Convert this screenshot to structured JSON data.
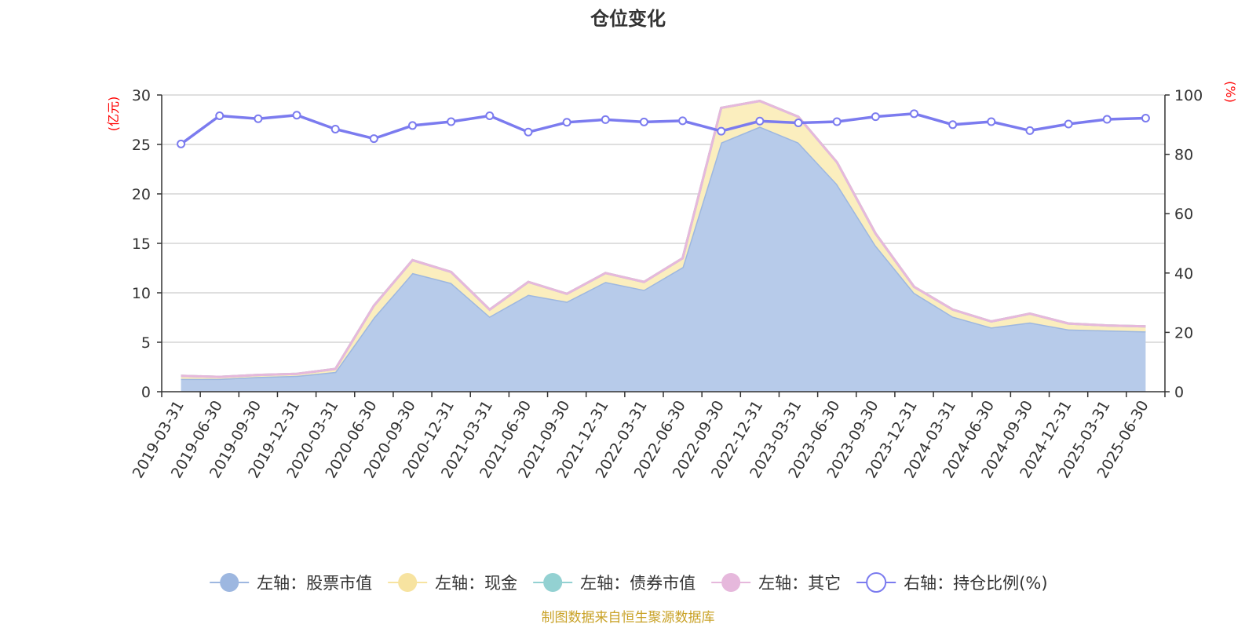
{
  "chart_data": {
    "type": "area",
    "title": "仓位变化",
    "y_left_unit": "(亿元)",
    "y_right_unit": "(%)",
    "ylim_left": [
      0,
      30
    ],
    "yticks_left": [
      0,
      5,
      10,
      15,
      20,
      25,
      30
    ],
    "ylim_right": [
      0,
      100
    ],
    "yticks_right": [
      0,
      20,
      40,
      60,
      80,
      100
    ],
    "grid": true,
    "legend_position": "bottom",
    "x": [
      "2019-03-31",
      "2019-06-30",
      "2019-09-30",
      "2019-12-31",
      "2020-03-31",
      "2020-06-30",
      "2020-09-30",
      "2020-12-31",
      "2021-03-31",
      "2021-06-30",
      "2021-09-30",
      "2021-12-31",
      "2022-03-31",
      "2022-06-30",
      "2022-09-30",
      "2022-12-31",
      "2023-03-31",
      "2023-06-30",
      "2023-09-30",
      "2023-12-31",
      "2024-03-31",
      "2024-06-30",
      "2024-09-30",
      "2024-12-31",
      "2025-03-31",
      "2025-06-30"
    ],
    "series": [
      {
        "name": "左轴：股票市值",
        "axis": "left",
        "stack": true,
        "color": "#9db7e0",
        "fill": "#b7cbea",
        "values": [
          1.3,
          1.3,
          1.5,
          1.6,
          2.0,
          7.5,
          12.0,
          11.0,
          7.6,
          9.8,
          9.1,
          11.1,
          10.3,
          12.6,
          25.2,
          26.8,
          25.2,
          21.0,
          14.8,
          10.0,
          7.6,
          6.5,
          7.0,
          6.3,
          6.2,
          6.1
        ]
      },
      {
        "name": "左轴：现金",
        "axis": "left",
        "stack": true,
        "color": "#f7e3a0",
        "fill": "#fbeebe",
        "values": [
          0.3,
          0.2,
          0.2,
          0.2,
          0.3,
          1.2,
          1.3,
          1.1,
          0.7,
          1.3,
          0.8,
          0.9,
          0.8,
          0.9,
          3.5,
          2.6,
          2.6,
          2.2,
          1.2,
          0.6,
          0.7,
          0.6,
          0.9,
          0.6,
          0.5,
          0.5
        ]
      },
      {
        "name": "左轴：债券市值",
        "axis": "left",
        "stack": true,
        "color": "#93d1d2",
        "fill": "#93d1d2",
        "values": [
          0,
          0,
          0,
          0,
          0,
          0,
          0,
          0,
          0,
          0,
          0,
          0,
          0,
          0,
          0,
          0,
          0,
          0,
          0,
          0,
          0,
          0,
          0,
          0,
          0,
          0
        ]
      },
      {
        "name": "左轴：其它",
        "axis": "left",
        "stack": true,
        "color": "#e6b8dc",
        "fill": "#e6b8dc",
        "values": [
          0,
          0,
          0,
          0,
          0,
          0,
          0,
          0,
          0,
          0,
          0,
          0,
          0,
          0,
          0,
          0,
          0,
          0,
          0,
          0,
          0,
          0,
          0,
          0,
          0,
          0
        ]
      },
      {
        "name": "右轴：持仓比例(%)",
        "axis": "right",
        "type": "line",
        "color": "#7b7bef",
        "values": [
          83.5,
          93.0,
          92.0,
          93.2,
          88.5,
          85.3,
          89.7,
          91.0,
          93.0,
          87.5,
          90.8,
          91.7,
          90.9,
          91.3,
          87.8,
          91.2,
          90.6,
          91.0,
          92.7,
          93.7,
          90.0,
          91.0,
          88.0,
          90.2,
          91.8,
          92.2
        ]
      }
    ]
  },
  "footer": {
    "source_text": "制图数据来自恒生聚源数据库"
  }
}
